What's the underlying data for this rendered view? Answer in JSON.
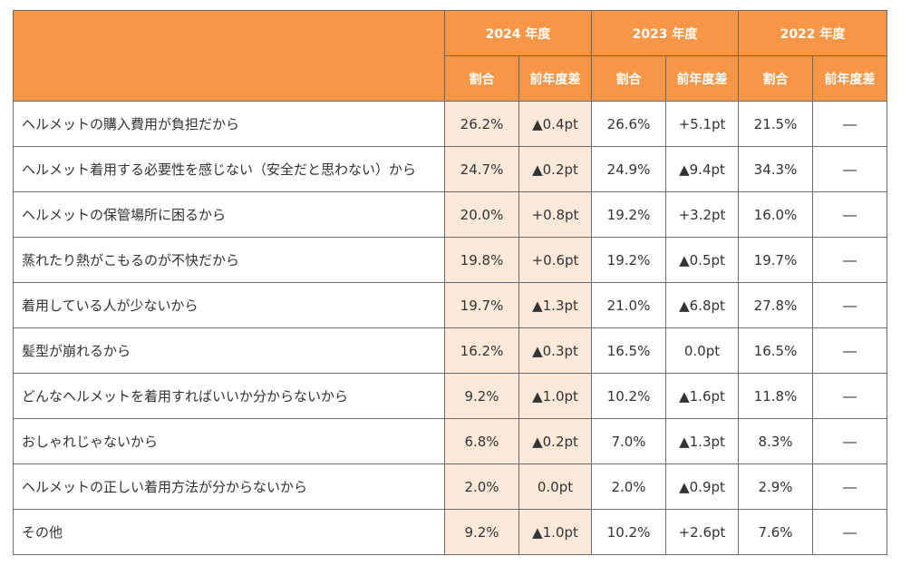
{
  "chart_data": {
    "type": "table",
    "years": [
      {
        "label": "2024 年度"
      },
      {
        "label": "2023 年度"
      },
      {
        "label": "2022 年度"
      }
    ],
    "sub_headers": {
      "share": "割合",
      "diff": "前年度差"
    },
    "rows": [
      {
        "reason": "ヘルメットの購入費用が負担だから",
        "cells": [
          "26.2%",
          "▲0.4pt",
          "26.6%",
          "+5.1pt",
          "21.5%",
          "―"
        ]
      },
      {
        "reason": "ヘルメット着用する必要性を感じない（安全だと思わない）から",
        "cells": [
          "24.7%",
          "▲0.2pt",
          "24.9%",
          "▲9.4pt",
          "34.3%",
          "―"
        ]
      },
      {
        "reason": "ヘルメットの保管場所に困るから",
        "cells": [
          "20.0%",
          "+0.8pt",
          "19.2%",
          "+3.2pt",
          "16.0%",
          "―"
        ]
      },
      {
        "reason": "蒸れたり熱がこもるのが不快だから",
        "cells": [
          "19.8%",
          "+0.6pt",
          "19.2%",
          "▲0.5pt",
          "19.7%",
          "―"
        ]
      },
      {
        "reason": "着用している人が少ないから",
        "cells": [
          "19.7%",
          "▲1.3pt",
          "21.0%",
          "▲6.8pt",
          "27.8%",
          "―"
        ]
      },
      {
        "reason": "髪型が崩れるから",
        "cells": [
          "16.2%",
          "▲0.3pt",
          "16.5%",
          "0.0pt",
          "16.5%",
          "―"
        ]
      },
      {
        "reason": "どんなヘルメットを着用すればいいか分からないから",
        "cells": [
          "9.2%",
          "▲1.0pt",
          "10.2%",
          "▲1.6pt",
          "11.8%",
          "―"
        ]
      },
      {
        "reason": "おしゃれじゃないから",
        "cells": [
          "6.8%",
          "▲0.2pt",
          "7.0%",
          "▲1.3pt",
          "8.3%",
          "―"
        ]
      },
      {
        "reason": "ヘルメットの正しい着用方法が分からないから",
        "cells": [
          "2.0%",
          "0.0pt",
          "2.0%",
          "▲0.9pt",
          "2.9%",
          "―"
        ]
      },
      {
        "reason": "その他",
        "cells": [
          "9.2%",
          "▲1.0pt",
          "10.2%",
          "+2.6pt",
          "7.6%",
          "―"
        ]
      }
    ]
  },
  "colors": {
    "header_bg": "#f79646",
    "header_text": "#ffffff",
    "highlight_bg": "#fde9d9",
    "border": "#6b6b6b"
  }
}
